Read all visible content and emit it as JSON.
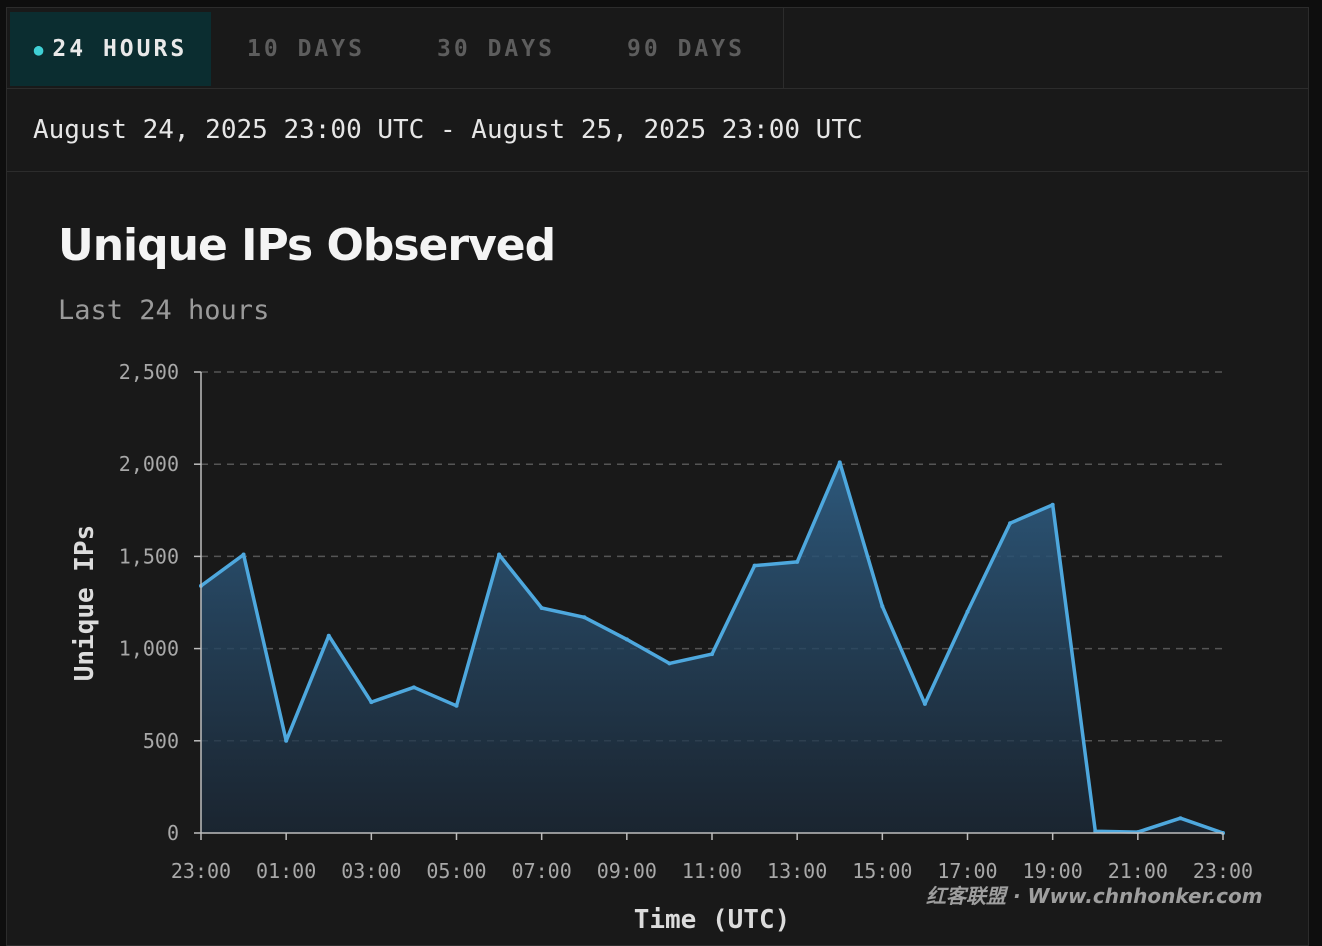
{
  "tabs": [
    {
      "label": "24 HOURS",
      "active": true
    },
    {
      "label": "10 DAYS",
      "active": false
    },
    {
      "label": "30 DAYS",
      "active": false
    },
    {
      "label": "90 DAYS",
      "active": false
    }
  ],
  "date_range": "August 24, 2025 23:00 UTC - August 25, 2025 23:00 UTC",
  "watermark": "红客联盟 · Www.chnhonker.com",
  "colors": {
    "accent": "#3fd0d5",
    "line": "#4ea8de",
    "grid": "#555555"
  },
  "chart_data": {
    "type": "area",
    "title": "Unique IPs Observed",
    "subtitle": "Last 24 hours",
    "xlabel": "Time (UTC)",
    "ylabel": "Unique IPs",
    "x": [
      "23:00",
      "00:00",
      "01:00",
      "02:00",
      "03:00",
      "04:00",
      "05:00",
      "06:00",
      "07:00",
      "08:00",
      "09:00",
      "10:00",
      "11:00",
      "12:00",
      "13:00",
      "14:00",
      "15:00",
      "16:00",
      "17:00",
      "18:00",
      "19:00",
      "20:00",
      "21:00",
      "22:00",
      "23:00"
    ],
    "x_tick_labels": [
      "23:00",
      "01:00",
      "03:00",
      "05:00",
      "07:00",
      "09:00",
      "11:00",
      "13:00",
      "15:00",
      "17:00",
      "19:00",
      "21:00",
      "23:00"
    ],
    "values": [
      1340,
      1510,
      500,
      1070,
      710,
      790,
      690,
      1510,
      1220,
      1170,
      1050,
      920,
      970,
      1450,
      1470,
      2010,
      1230,
      700,
      1200,
      1680,
      1780,
      10,
      5,
      80,
      0
    ],
    "ylim": [
      0,
      2500
    ],
    "y_ticks": [
      0,
      500,
      1000,
      1500,
      2000,
      2500
    ],
    "y_tick_labels": [
      "0",
      "500",
      "1,000",
      "1,500",
      "2,000",
      "2,500"
    ],
    "grid": "dashed horizontal"
  }
}
